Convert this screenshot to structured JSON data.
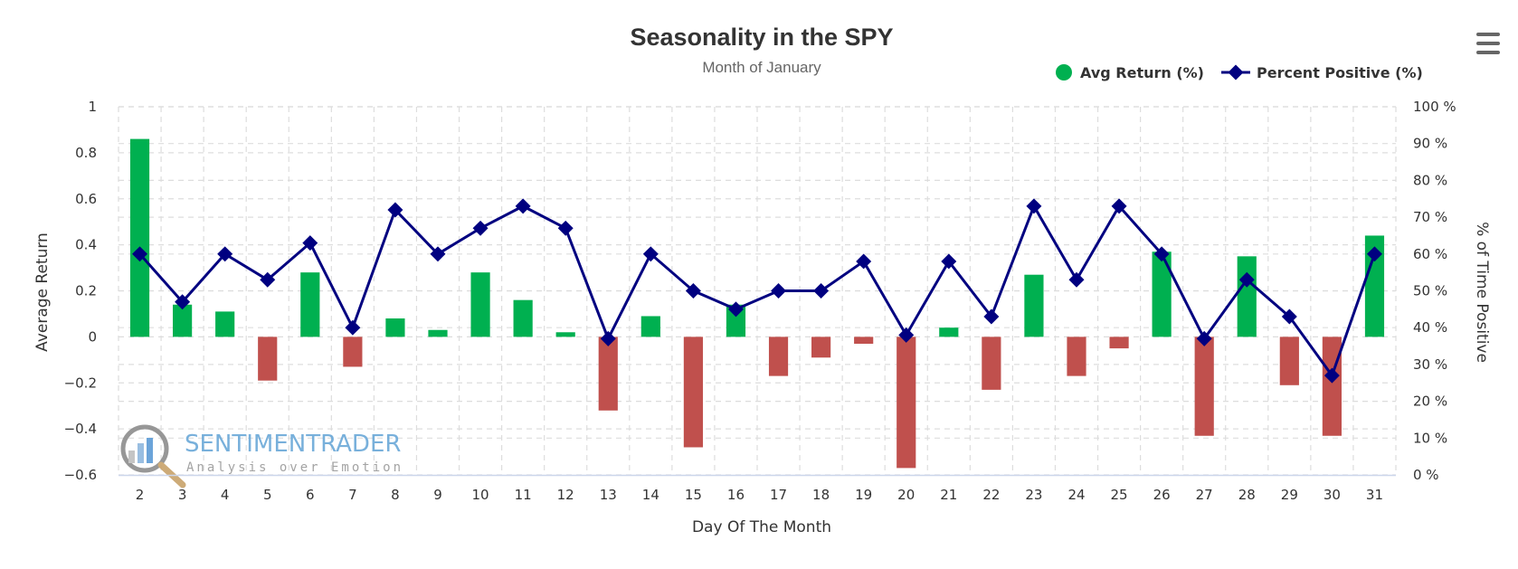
{
  "chart_data": {
    "type": "bar+line",
    "title": "Seasonality in the SPY",
    "subtitle": "Month of January",
    "xlabel": "Day Of The Month",
    "ylabel": "Average Return",
    "y2label": "% of Time Positive",
    "categories": [
      "2",
      "3",
      "4",
      "5",
      "6",
      "7",
      "8",
      "9",
      "10",
      "11",
      "12",
      "13",
      "14",
      "15",
      "16",
      "17",
      "18",
      "19",
      "20",
      "21",
      "22",
      "23",
      "24",
      "25",
      "26",
      "27",
      "28",
      "29",
      "30",
      "31"
    ],
    "series": [
      {
        "name": "Avg Return (%)",
        "type": "bar",
        "axis": "left",
        "values": [
          0.86,
          0.14,
          0.11,
          -0.19,
          0.28,
          -0.13,
          0.08,
          0.03,
          0.28,
          0.16,
          0.02,
          -0.32,
          0.09,
          -0.48,
          0.14,
          -0.17,
          -0.09,
          -0.03,
          -0.57,
          0.04,
          -0.23,
          0.27,
          -0.17,
          -0.05,
          0.37,
          -0.43,
          0.35,
          -0.21,
          -0.43,
          0.44
        ]
      },
      {
        "name": "Percent Positive (%)",
        "type": "line",
        "axis": "right",
        "values": [
          60,
          47,
          60,
          53,
          63,
          40,
          72,
          60,
          67,
          73,
          67,
          37,
          60,
          50,
          45,
          50,
          50,
          58,
          38,
          58,
          43,
          73,
          53,
          73,
          60,
          37,
          53,
          43,
          27,
          60
        ]
      }
    ],
    "ylim": [
      -0.6,
      1
    ],
    "yticks": [
      "1",
      "0.8",
      "0.6",
      "0.4",
      "0.2",
      "0",
      "−0.2",
      "−0.4",
      "−0.6"
    ],
    "y2lim": [
      0,
      100
    ],
    "y2ticks": [
      "100 %",
      "90 %",
      "80 %",
      "70 %",
      "60 %",
      "50 %",
      "40 %",
      "30 %",
      "20 %",
      "10 %",
      "0 %"
    ],
    "colors": {
      "positive_bar": "#00b050",
      "negative_bar": "#c0504d",
      "line": "#000080",
      "legend_bar": "#00b050"
    },
    "legend": {
      "position": "top-right"
    }
  },
  "watermark": {
    "brand": "SENTIMENTRADER",
    "tagline": "Analysis over Emotion"
  },
  "menu": {
    "icon": "hamburger-menu-icon"
  }
}
